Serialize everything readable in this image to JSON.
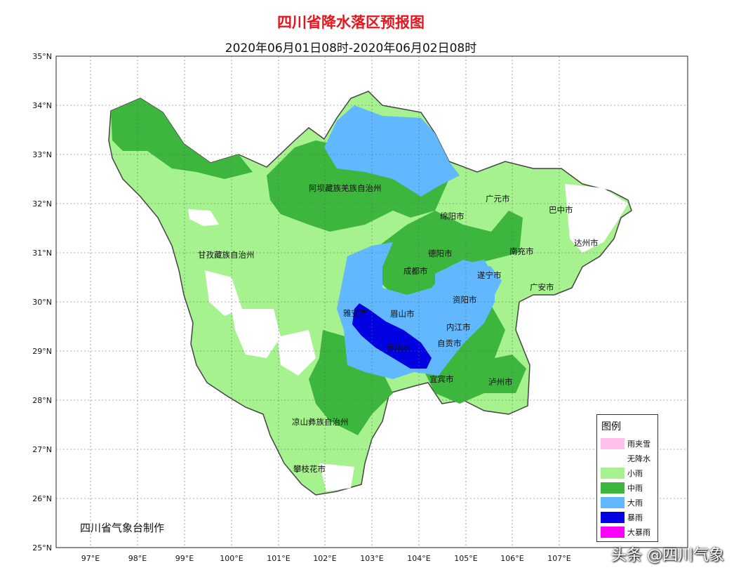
{
  "title": "四川省降水落区预报图",
  "subtitle": "2020年06月01日08时-2020年06月02日08时",
  "lat_labels": [
    "35°N",
    "34°N",
    "33°N",
    "32°N",
    "31°N",
    "30°N",
    "29°N",
    "28°N",
    "27°N",
    "26°N",
    "25°N"
  ],
  "lon_labels": [
    "97°E",
    "98°E",
    "99°E",
    "100°E",
    "101°E",
    "102°E",
    "103°E",
    "104°E",
    "105°E",
    "106°E",
    "107°E"
  ],
  "cities": [
    "阿坝藏族羌族自治州",
    "甘孜藏族自治州",
    "绵阳市",
    "广元市",
    "巴中市",
    "达州市",
    "德阳市",
    "南充市",
    "成都市",
    "遂宁市",
    "广安市",
    "资阳市",
    "雅安市",
    "眉山市",
    "内江市",
    "乐山市",
    "自贡市",
    "宜宾市",
    "泸州市",
    "凉山彝族自治州",
    "攀枝花市"
  ],
  "legend": {
    "title": "图例",
    "items": [
      {
        "label": "雨夹雪",
        "color": "#ffc0ee"
      },
      {
        "label": "无降水",
        "color": "#ffffff"
      },
      {
        "label": "小雨",
        "color": "#a6f28f"
      },
      {
        "label": "中雨",
        "color": "#3cb63c"
      },
      {
        "label": "大雨",
        "color": "#61b8ff"
      },
      {
        "label": "暴雨",
        "color": "#0000e1"
      },
      {
        "label": "大暴雨",
        "color": "#fa00fa"
      }
    ]
  },
  "maker": "四川省气象台制作",
  "watermark": "头条 @四川气象"
}
